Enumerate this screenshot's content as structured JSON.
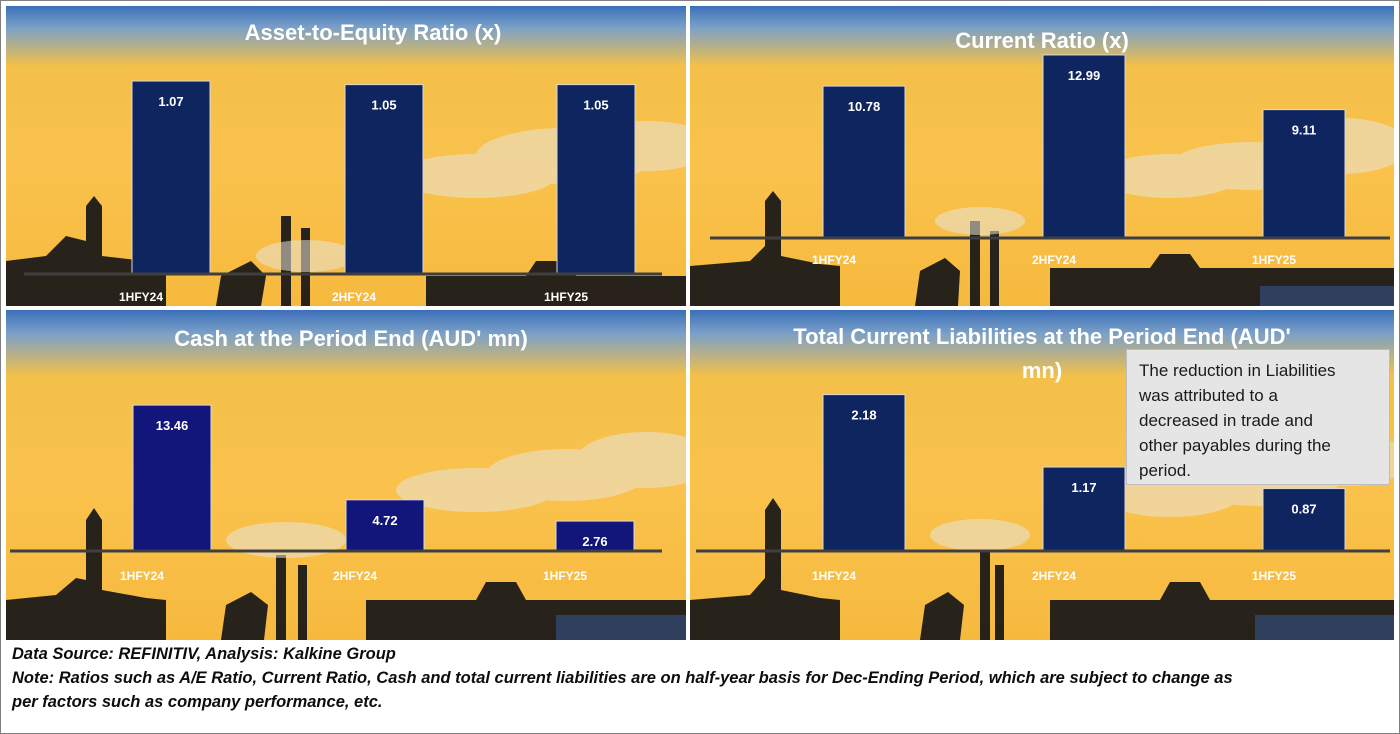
{
  "colors": {
    "bar": "#0f2560",
    "bar_alt": "#12157a",
    "axis": "#3f3f3f",
    "text": "#ffffff"
  },
  "chart_data": [
    {
      "type": "bar",
      "title": "Asset-to-Equity Ratio (x)",
      "categories": [
        "1HFY24",
        "2HFY24",
        "1HFY25"
      ],
      "values": [
        1.07,
        1.05,
        1.05
      ],
      "value_labels": [
        "1.07",
        "1.05",
        "1.05"
      ],
      "ylim": [
        0,
        1.12
      ]
    },
    {
      "type": "bar",
      "title": "Current Ratio (x)",
      "categories": [
        "1HFY24",
        "2HFY24",
        "1HFY25"
      ],
      "values": [
        10.78,
        12.99,
        9.11
      ],
      "value_labels": [
        "10.78",
        "12.99",
        "9.11"
      ],
      "ylim": [
        0,
        13.2
      ]
    },
    {
      "type": "bar",
      "title": "Cash at the Period End (AUD' mn)",
      "categories": [
        "1HFY24",
        "2HFY24",
        "1HFY25"
      ],
      "values": [
        13.46,
        4.72,
        2.76
      ],
      "value_labels": [
        "13.46",
        "4.72",
        "2.76"
      ],
      "ylim": [
        0,
        14.3
      ]
    },
    {
      "type": "bar",
      "title_lines": [
        "Total Current Liabilities at the Period End (AUD'",
        "mn)"
      ],
      "categories": [
        "1HFY24",
        "2HFY24",
        "1HFY25"
      ],
      "values": [
        2.18,
        1.17,
        0.87
      ],
      "value_labels": [
        "2.18",
        "1.17",
        "0.87"
      ],
      "ylim": [
        0,
        2.3
      ]
    }
  ],
  "note": {
    "lines": [
      "The reduction in Liabilities",
      "was attributed to a",
      "decreased in trade and",
      "other payables during the",
      "period."
    ]
  },
  "footer": {
    "source": "Data Source: REFINITIV, Analysis: Kalkine Group",
    "note_line1": "Note: Ratios such as A/E Ratio, Current Ratio, Cash and total current liabilities are on half-year basis for Dec-Ending Period, which are subject to change as",
    "note_line2": "per factors such as company performance, etc."
  }
}
